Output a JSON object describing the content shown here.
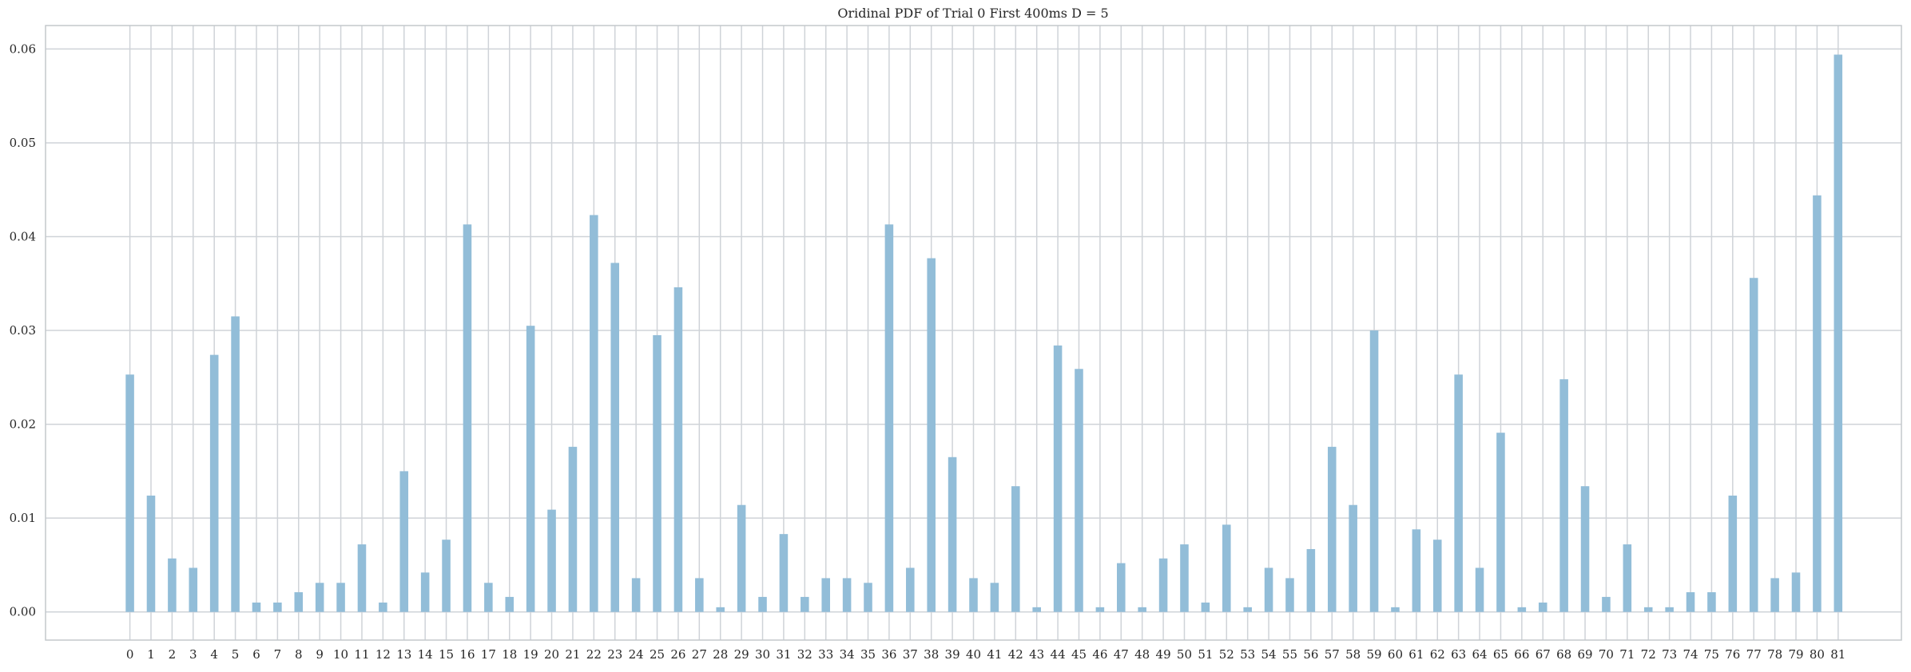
{
  "chart_data": {
    "type": "bar",
    "title": "Oridinal PDF of Trial 0 First 400ms D = 5",
    "xlabel": "",
    "ylabel": "",
    "categories": [
      "0",
      "1",
      "2",
      "3",
      "4",
      "5",
      "6",
      "7",
      "8",
      "9",
      "10",
      "11",
      "12",
      "13",
      "14",
      "15",
      "16",
      "17",
      "18",
      "19",
      "20",
      "21",
      "22",
      "23",
      "24",
      "25",
      "26",
      "27",
      "28",
      "29",
      "30",
      "31",
      "32",
      "33",
      "34",
      "35",
      "36",
      "37",
      "38",
      "39",
      "40",
      "41",
      "42",
      "43",
      "44",
      "45",
      "46",
      "47",
      "48",
      "49",
      "50",
      "51",
      "52",
      "53",
      "54",
      "55",
      "56",
      "57",
      "58",
      "59",
      "60",
      "61",
      "62",
      "63",
      "64",
      "65",
      "66",
      "67",
      "68",
      "69",
      "70",
      "71",
      "72",
      "73",
      "74",
      "75",
      "76",
      "77",
      "78",
      "79",
      "80",
      "81"
    ],
    "values": [
      0.0253,
      0.0124,
      0.0057,
      0.0047,
      0.0274,
      0.0315,
      0.001,
      0.001,
      0.0021,
      0.0031,
      0.0031,
      0.0072,
      0.001,
      0.015,
      0.0042,
      0.0077,
      0.0413,
      0.0031,
      0.0016,
      0.0305,
      0.0109,
      0.0176,
      0.0423,
      0.0372,
      0.0036,
      0.0295,
      0.0346,
      0.0036,
      0.0005,
      0.0114,
      0.0016,
      0.0083,
      0.0016,
      0.0036,
      0.0036,
      0.0031,
      0.0413,
      0.0047,
      0.0377,
      0.0165,
      0.0036,
      0.0031,
      0.0134,
      0.0005,
      0.0284,
      0.0259,
      0.0005,
      0.0052,
      0.0005,
      0.0057,
      0.0072,
      0.001,
      0.0093,
      0.0005,
      0.0047,
      0.0036,
      0.0067,
      0.0176,
      0.0114,
      0.03,
      0.0005,
      0.0088,
      0.0077,
      0.0253,
      0.0047,
      0.0191,
      0.0005,
      0.001,
      0.0248,
      0.0134,
      0.0016,
      0.0072,
      0.0005,
      0.0005,
      0.0021,
      0.0021,
      0.0124,
      0.0356,
      0.0036,
      0.0042,
      0.0444,
      0.0594
    ],
    "yticks": [
      "0.00",
      "0.01",
      "0.02",
      "0.03",
      "0.04",
      "0.05",
      "0.06"
    ],
    "ylim": [
      -0.003,
      0.0625
    ],
    "xlim": [
      -4.0,
      84.0
    ],
    "grid": true,
    "legend": "none",
    "colors": {
      "bar": "#92bdd8",
      "grid": "#cfd3d8",
      "axes_edge": "#c4c8cc",
      "text": "#262626"
    }
  }
}
